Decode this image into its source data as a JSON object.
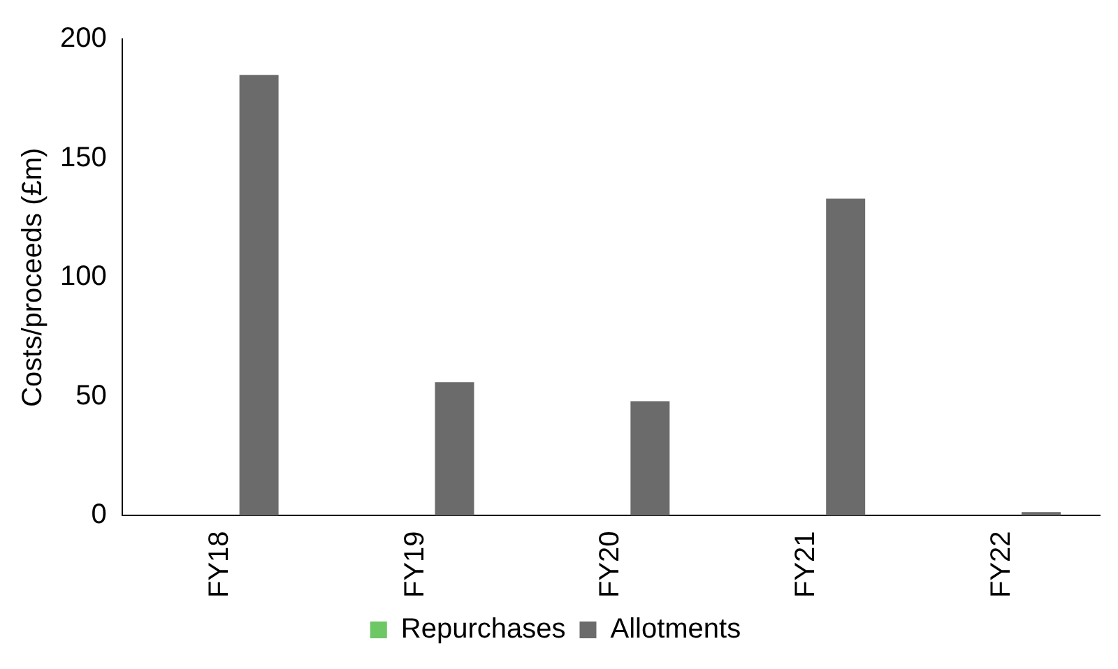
{
  "chart_data": {
    "type": "bar",
    "ylabel": "Costs/proceeds (£m)",
    "categories": [
      "FY18",
      "FY19",
      "FY20",
      "FY21",
      "FY22"
    ],
    "series": [
      {
        "name": "Repurchases",
        "color": "#6cc764",
        "values": [
          0,
          0,
          0,
          0,
          0
        ]
      },
      {
        "name": "Allotments",
        "color": "#6b6b6b",
        "values": [
          185,
          56,
          48,
          133,
          1.5
        ]
      }
    ],
    "ylim": [
      0,
      200
    ],
    "yticks": [
      0,
      50,
      100,
      150,
      200
    ],
    "grid": false,
    "legend": "bottom"
  }
}
